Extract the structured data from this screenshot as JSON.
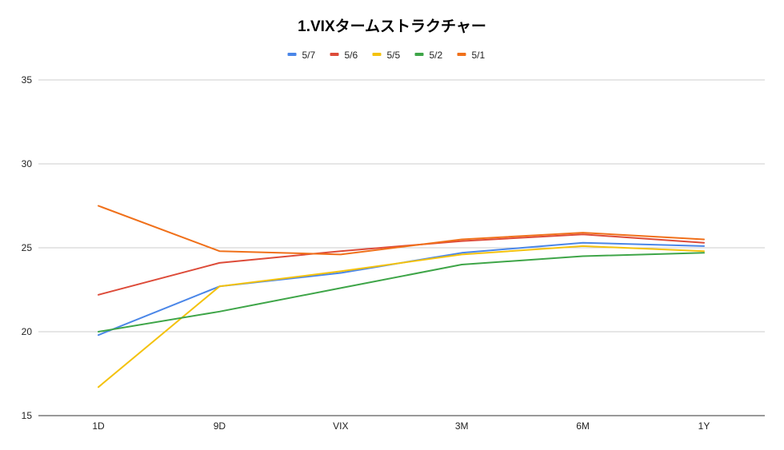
{
  "chart_data": {
    "type": "line",
    "title": "1.VIXタームストラクチャー",
    "xlabel": "",
    "ylabel": "",
    "categories": [
      "1D",
      "9D",
      "VIX",
      "3M",
      "6M",
      "1Y"
    ],
    "ylim": [
      15,
      35
    ],
    "yticks": [
      15,
      20,
      25,
      30,
      35
    ],
    "grid": true,
    "legend_position": "top-center",
    "series": [
      {
        "name": "5/7",
        "color": "#4a86e8",
        "values": [
          19.8,
          22.7,
          23.5,
          24.7,
          25.3,
          25.1
        ]
      },
      {
        "name": "5/6",
        "color": "#dd4b39",
        "values": [
          22.2,
          24.1,
          24.8,
          25.4,
          25.8,
          25.3
        ]
      },
      {
        "name": "5/5",
        "color": "#f4c20d",
        "values": [
          16.7,
          22.7,
          23.6,
          24.6,
          25.1,
          24.8
        ]
      },
      {
        "name": "5/2",
        "color": "#3ea548",
        "values": [
          20.0,
          21.2,
          22.6,
          24.0,
          24.5,
          24.7
        ]
      },
      {
        "name": "5/1",
        "color": "#f0701a",
        "values": [
          27.5,
          24.8,
          24.6,
          25.5,
          25.9,
          25.5
        ]
      }
    ]
  }
}
